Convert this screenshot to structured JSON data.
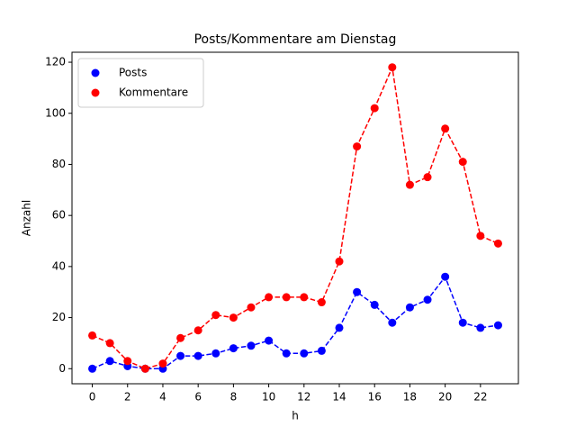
{
  "chart_data": {
    "type": "line",
    "title": "Posts/Kommentare am Dienstag",
    "xlabel": "h",
    "ylabel": "Anzahl",
    "x": [
      0,
      1,
      2,
      3,
      4,
      5,
      6,
      7,
      8,
      9,
      10,
      11,
      12,
      13,
      14,
      15,
      16,
      17,
      18,
      19,
      20,
      21,
      22,
      23
    ],
    "series": [
      {
        "name": "Posts",
        "color": "#0000ff",
        "values": [
          0,
          3,
          1,
          0,
          0,
          5,
          5,
          6,
          8,
          9,
          11,
          6,
          6,
          7,
          16,
          30,
          25,
          18,
          24,
          27,
          36,
          18,
          16,
          17
        ]
      },
      {
        "name": "Kommentare",
        "color": "#ff0000",
        "values": [
          13,
          10,
          3,
          0,
          2,
          12,
          15,
          21,
          20,
          24,
          28,
          28,
          28,
          26,
          42,
          87,
          102,
          118,
          72,
          75,
          94,
          81,
          52,
          49
        ]
      }
    ],
    "xlim": [
      -1.15,
      24.15
    ],
    "xticks": [
      0,
      2,
      4,
      6,
      8,
      10,
      12,
      14,
      16,
      18,
      20,
      22
    ],
    "ylim": [
      -5.9,
      123.9
    ],
    "yticks": [
      0,
      20,
      40,
      60,
      80,
      100,
      120
    ],
    "legend": "upper left"
  }
}
